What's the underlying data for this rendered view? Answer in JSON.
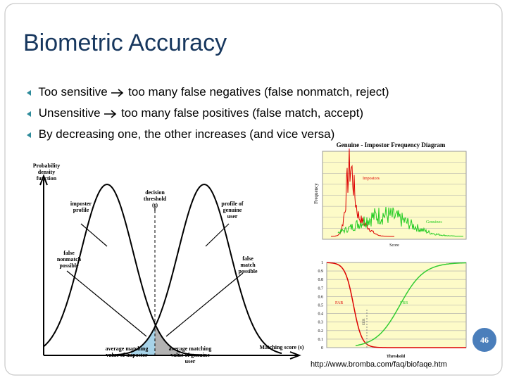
{
  "title": "Biometric Accuracy",
  "bullets": [
    {
      "lead": "Too sensitive",
      "rest": "too many false negatives (false nonmatch, reject)"
    },
    {
      "lead": "Unsensitive",
      "rest": "too many false positives (false match, accept)"
    },
    {
      "lead": "By decreasing one, the other increases (and vice versa)"
    }
  ],
  "left_diagram": {
    "y_label": "Probability density function",
    "imposter_profile": "imposter profile",
    "threshold": "decision threshold (t)",
    "genuine_profile": "profile of genuine user",
    "false_nonmatch": "false nonmatch possible",
    "false_match": "false match possible",
    "avg_imposter": "average matching value of imposter",
    "avg_genuine": "average matching value of genuine user",
    "x_label": "Matching score (s)"
  },
  "top_chart": {
    "title": "Genuine - Impostor Frequency Diagram",
    "y_label": "Frequency",
    "x_label": "Score",
    "impostors": "Impostors",
    "genuines": "Genuines"
  },
  "bottom_chart": {
    "yticks": [
      "1",
      "0.9",
      "0.8",
      "0.7",
      "0.6",
      "0.5",
      "0.4",
      "0.3",
      "0.2",
      "0.1",
      "0"
    ],
    "far": "FAR",
    "frr": "FRR",
    "eer": "EER",
    "x_label": "Threshold"
  },
  "source": "http://www.bromba.com/faq/biofaqe.htm",
  "page_number": "46"
}
